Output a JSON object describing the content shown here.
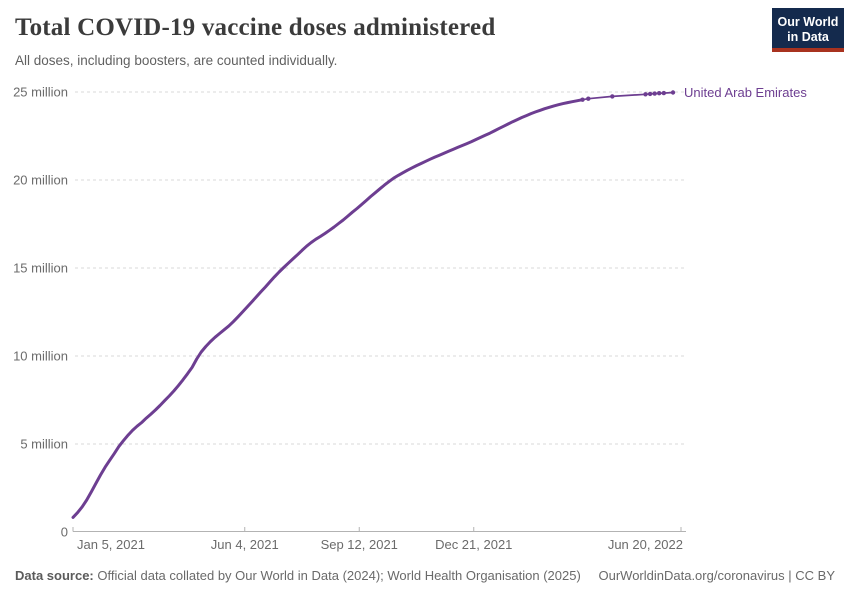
{
  "header": {
    "title": "Total COVID-19 vaccine doses administered",
    "subtitle": "All doses, including boosters, are counted individually.",
    "logo": {
      "line1": "Our World",
      "line2": "in Data",
      "bg_color": "#142a4d",
      "accent_color": "#a8321f"
    }
  },
  "chart_data": {
    "type": "line",
    "title": "Total COVID-19 vaccine doses administered",
    "entity_label": "United Arab Emirates",
    "line_color": "#6d3e91",
    "grid": "dashed",
    "legend_position": "end-of-line",
    "ylim_million": [
      0,
      25
    ],
    "x_domain": [
      "2021-01-05",
      "2022-06-20"
    ],
    "y_axis": {
      "ticks": [
        {
          "value_million": 0,
          "label": "0"
        },
        {
          "value_million": 5,
          "label": "5 million"
        },
        {
          "value_million": 10,
          "label": "10 million"
        },
        {
          "value_million": 15,
          "label": "15 million"
        },
        {
          "value_million": 20,
          "label": "20 million"
        },
        {
          "value_million": 25,
          "label": "25 million"
        }
      ]
    },
    "x_axis": {
      "ticks": [
        {
          "date": "2021-01-05",
          "label": "Jan 5, 2021"
        },
        {
          "date": "2021-06-04",
          "label": "Jun 4, 2021"
        },
        {
          "date": "2021-09-12",
          "label": "Sep 12, 2021"
        },
        {
          "date": "2021-12-21",
          "label": "Dec 21, 2021"
        },
        {
          "date": "2022-06-20",
          "label": "Jun 20, 2022"
        }
      ]
    },
    "markers_from": "2022-03-26",
    "point_format": [
      "date",
      "value_million"
    ],
    "series": [
      {
        "name": "United Arab Emirates",
        "color": "#6d3e91",
        "points": [
          [
            "2021-01-05",
            0.83
          ],
          [
            "2021-01-09",
            1.1
          ],
          [
            "2021-01-13",
            1.43
          ],
          [
            "2021-01-17",
            1.82
          ],
          [
            "2021-01-21",
            2.28
          ],
          [
            "2021-01-25",
            2.76
          ],
          [
            "2021-01-29",
            3.24
          ],
          [
            "2021-02-02",
            3.68
          ],
          [
            "2021-02-06",
            4.07
          ],
          [
            "2021-02-10",
            4.45
          ],
          [
            "2021-02-14",
            4.85
          ],
          [
            "2021-02-18",
            5.19
          ],
          [
            "2021-02-22",
            5.5
          ],
          [
            "2021-02-26",
            5.77
          ],
          [
            "2021-03-02",
            6.01
          ],
          [
            "2021-03-06",
            6.22
          ],
          [
            "2021-03-10",
            6.47
          ],
          [
            "2021-03-14",
            6.7
          ],
          [
            "2021-03-18",
            6.93
          ],
          [
            "2021-03-22",
            7.19
          ],
          [
            "2021-03-26",
            7.46
          ],
          [
            "2021-03-30",
            7.73
          ],
          [
            "2021-04-03",
            8.01
          ],
          [
            "2021-04-07",
            8.31
          ],
          [
            "2021-04-11",
            8.64
          ],
          [
            "2021-04-15",
            8.99
          ],
          [
            "2021-04-19",
            9.35
          ],
          [
            "2021-04-23",
            9.83
          ],
          [
            "2021-04-27",
            10.23
          ],
          [
            "2021-05-01",
            10.54
          ],
          [
            "2021-05-05",
            10.82
          ],
          [
            "2021-05-09",
            11.06
          ],
          [
            "2021-05-13",
            11.28
          ],
          [
            "2021-05-17",
            11.49
          ],
          [
            "2021-05-21",
            11.7
          ],
          [
            "2021-05-25",
            11.95
          ],
          [
            "2021-05-29",
            12.22
          ],
          [
            "2021-06-02",
            12.5
          ],
          [
            "2021-06-06",
            12.78
          ],
          [
            "2021-06-10",
            13.06
          ],
          [
            "2021-06-14",
            13.35
          ],
          [
            "2021-06-18",
            13.64
          ],
          [
            "2021-06-22",
            13.92
          ],
          [
            "2021-06-26",
            14.21
          ],
          [
            "2021-06-30",
            14.5
          ],
          [
            "2021-07-04",
            14.77
          ],
          [
            "2021-07-08",
            15.03
          ],
          [
            "2021-07-12",
            15.27
          ],
          [
            "2021-07-16",
            15.51
          ],
          [
            "2021-07-20",
            15.75
          ],
          [
            "2021-07-24",
            16.0
          ],
          [
            "2021-07-28",
            16.24
          ],
          [
            "2021-08-01",
            16.45
          ],
          [
            "2021-08-05",
            16.63
          ],
          [
            "2021-08-09",
            16.79
          ],
          [
            "2021-08-13",
            16.96
          ],
          [
            "2021-08-17",
            17.14
          ],
          [
            "2021-08-21",
            17.33
          ],
          [
            "2021-08-25",
            17.53
          ],
          [
            "2021-08-29",
            17.73
          ],
          [
            "2021-09-02",
            17.95
          ],
          [
            "2021-09-06",
            18.17
          ],
          [
            "2021-09-10",
            18.38
          ],
          [
            "2021-09-14",
            18.6
          ],
          [
            "2021-09-18",
            18.83
          ],
          [
            "2021-09-22",
            19.06
          ],
          [
            "2021-09-26",
            19.28
          ],
          [
            "2021-09-30",
            19.5
          ],
          [
            "2021-10-04",
            19.71
          ],
          [
            "2021-10-08",
            19.91
          ],
          [
            "2021-10-12",
            20.1
          ],
          [
            "2021-10-16",
            20.26
          ],
          [
            "2021-10-20",
            20.41
          ],
          [
            "2021-10-24",
            20.55
          ],
          [
            "2021-10-28",
            20.69
          ],
          [
            "2021-11-01",
            20.82
          ],
          [
            "2021-11-05",
            20.94
          ],
          [
            "2021-11-09",
            21.06
          ],
          [
            "2021-11-13",
            21.18
          ],
          [
            "2021-11-17",
            21.3
          ],
          [
            "2021-11-21",
            21.41
          ],
          [
            "2021-11-25",
            21.52
          ],
          [
            "2021-11-29",
            21.63
          ],
          [
            "2021-12-03",
            21.74
          ],
          [
            "2021-12-07",
            21.85
          ],
          [
            "2021-12-11",
            21.96
          ],
          [
            "2021-12-15",
            22.07
          ],
          [
            "2021-12-19",
            22.18
          ],
          [
            "2021-12-23",
            22.3
          ],
          [
            "2021-12-27",
            22.42
          ],
          [
            "2021-12-31",
            22.54
          ],
          [
            "2022-01-04",
            22.66
          ],
          [
            "2022-01-08",
            22.79
          ],
          [
            "2022-01-12",
            22.92
          ],
          [
            "2022-01-16",
            23.05
          ],
          [
            "2022-01-20",
            23.18
          ],
          [
            "2022-01-24",
            23.31
          ],
          [
            "2022-01-28",
            23.43
          ],
          [
            "2022-02-01",
            23.55
          ],
          [
            "2022-02-05",
            23.66
          ],
          [
            "2022-02-09",
            23.77
          ],
          [
            "2022-02-13",
            23.87
          ],
          [
            "2022-02-17",
            23.96
          ],
          [
            "2022-02-21",
            24.05
          ],
          [
            "2022-02-25",
            24.13
          ],
          [
            "2022-03-01",
            24.21
          ],
          [
            "2022-03-05",
            24.28
          ],
          [
            "2022-03-09",
            24.34
          ],
          [
            "2022-03-13",
            24.4
          ],
          [
            "2022-03-17",
            24.45
          ],
          [
            "2022-03-21",
            24.5
          ],
          [
            "2022-03-26",
            24.56
          ],
          [
            "2022-03-31",
            24.62
          ],
          [
            "2022-04-21",
            24.75
          ],
          [
            "2022-05-20",
            24.87
          ],
          [
            "2022-05-24",
            24.89
          ],
          [
            "2022-05-28",
            24.91
          ],
          [
            "2022-06-01",
            24.93
          ],
          [
            "2022-06-05",
            24.94
          ],
          [
            "2022-06-13",
            24.97
          ]
        ]
      }
    ],
    "colors": {
      "gridline": "#d9d9d9",
      "axis_line": "#b3b3b3",
      "tick_label": "#6b6b6b"
    }
  },
  "footer": {
    "datasource_label": "Data source:",
    "datasource_text": "Official data collated by Our World in Data (2024); World Health Organisation (2025)",
    "license_text": "OurWorldinData.org/coronavirus | CC BY"
  }
}
